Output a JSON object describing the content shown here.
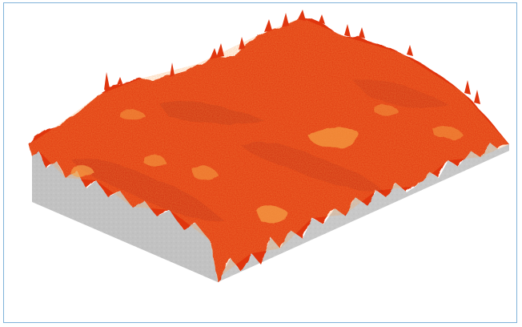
{
  "figure": {
    "subject": "3d-surface-topography-render",
    "colors": {
      "frame_border": "#7fb2d9",
      "base_block": "#c4c4c4",
      "surface_primary": "#e83a12",
      "surface_dark": "#c42a0c",
      "surface_highlight": "#f5a040",
      "surface_peak": "#ff5a1c"
    }
  }
}
